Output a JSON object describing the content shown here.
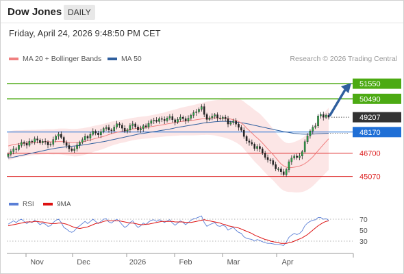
{
  "header": {
    "title": "Dow Jones",
    "period": "DAILY"
  },
  "timestamp": "Friday, April 24, 2026 9:48:50 PM CET",
  "legend": {
    "ma20_label": "MA 20 + Bollinger Bands",
    "ma20_color": "#f08080",
    "ma50_label": "MA 50",
    "ma50_color": "#2f5f9e"
  },
  "credit": "Research © 2026 Trading Central",
  "rsi_legend": {
    "rsi_label": "RSI",
    "rsi_color": "#5a7fd6",
    "ma9_label": "9MA",
    "ma9_color": "#dd1111"
  },
  "chart_data": {
    "type": "candlestick",
    "title": "Dow Jones",
    "y_range": [
      44000,
      52800
    ],
    "x_months": [
      "Nov",
      "Dec",
      "2026",
      "Feb",
      "Mar",
      "Apr"
    ],
    "last_price": {
      "value": 49207,
      "label": "49207"
    },
    "levels": [
      {
        "label": "51550",
        "value": 51550,
        "kind": "resistance-target",
        "color": "#4caa13"
      },
      {
        "label": "50490",
        "value": 50490,
        "kind": "resistance",
        "color": "#4caa13"
      },
      {
        "label": "48170",
        "value": 48170,
        "kind": "pivot",
        "color": "#1f6fd6"
      },
      {
        "label": "46700",
        "value": 46700,
        "kind": "support",
        "color": "#dd2222"
      },
      {
        "label": "45070",
        "value": 45070,
        "kind": "support",
        "color": "#dd2222"
      }
    ],
    "arrow": {
      "direction": "up",
      "from_value": 49207,
      "to_value": 51550,
      "color": "#2f5f9e"
    },
    "closes": [
      46620,
      46810,
      47000,
      46950,
      47240,
      47460,
      47380,
      47250,
      47530,
      47480,
      47700,
      47610,
      47420,
      47530,
      47480,
      47270,
      47310,
      47650,
      47880,
      48020,
      47800,
      47430,
      47230,
      47000,
      46880,
      47000,
      47260,
      47450,
      47640,
      47860,
      47750,
      48010,
      48230,
      48100,
      47980,
      48200,
      48420,
      48490,
      48320,
      48270,
      48520,
      48750,
      48650,
      48440,
      48230,
      48320,
      48620,
      48740,
      48530,
      48310,
      48410,
      48610,
      48530,
      48780,
      48960,
      49010,
      48910,
      49110,
      49060,
      48960,
      49150,
      49260,
      49030,
      48860,
      49050,
      49210,
      49110,
      48950,
      49140,
      49340,
      49530,
      49590,
      49760,
      49950,
      49400,
      49050,
      49160,
      49280,
      49380,
      49160,
      49110,
      49210,
      49100,
      48730,
      48840,
      48950,
      48720,
      48500,
      48300,
      47860,
      47550,
      47450,
      47330,
      47020,
      47170,
      47000,
      46700,
      46400,
      46230,
      46180,
      45900,
      45600,
      45600,
      45400,
      45200,
      45550,
      46100,
      46350,
      46500,
      46390,
      46500,
      46800,
      47500,
      47900,
      48250,
      48500,
      48600,
      49300,
      49400,
      49200,
      49350,
      49207
    ],
    "ma20": [
      47200,
      47250,
      47300,
      47330,
      47350,
      47370,
      47390,
      47410,
      47420,
      47440,
      47450,
      47460,
      47470,
      47480,
      47490,
      47500,
      47490,
      47480,
      47500,
      47510,
      47510,
      47500,
      47480,
      47460,
      47440,
      47430,
      47440,
      47460,
      47490,
      47530,
      47570,
      47620,
      47680,
      47730,
      47770,
      47820,
      47870,
      47930,
      48000,
      48060,
      48110,
      48150,
      48190,
      48220,
      48260,
      48300,
      48340,
      48380,
      48410,
      48440,
      48460,
      48480,
      48500,
      48520,
      48550,
      48580,
      48610,
      48640,
      48670,
      48700,
      48740,
      48770,
      48800,
      48830,
      48860,
      48900,
      48920,
      48940,
      48960,
      48980,
      49000,
      49030,
      49060,
      49090,
      49110,
      49140,
      49150,
      49160,
      49160,
      49150,
      49140,
      49140,
      49130,
      49110,
      49080,
      49030,
      48980,
      48900,
      48800,
      48650,
      48450,
      48280,
      48110,
      47920,
      47760,
      47600,
      47400,
      47200,
      47000,
      46800,
      46600,
      46380,
      46150,
      45950,
      45810,
      45720,
      45690,
      45700,
      45720,
      45750,
      45800,
      45870,
      45970,
      46100,
      46260,
      46440,
      46650,
      46870,
      47080,
      47300,
      47500,
      47700
    ],
    "ma50": [
      46350,
      46380,
      46420,
      46460,
      46500,
      46540,
      46580,
      46620,
      46660,
      46700,
      46740,
      46780,
      46820,
      46860,
      46900,
      46940,
      46980,
      47010,
      47040,
      47070,
      47100,
      47120,
      47140,
      47160,
      47180,
      47200,
      47220,
      47240,
      47260,
      47290,
      47320,
      47350,
      47380,
      47410,
      47440,
      47470,
      47500,
      47540,
      47580,
      47620,
      47660,
      47700,
      47740,
      47780,
      47820,
      47860,
      47900,
      47940,
      47980,
      48020,
      48050,
      48080,
      48110,
      48140,
      48170,
      48200,
      48230,
      48260,
      48290,
      48320,
      48350,
      48380,
      48420,
      48460,
      48500,
      48530,
      48560,
      48590,
      48620,
      48650,
      48680,
      48710,
      48740,
      48780,
      48810,
      48830,
      48850,
      48870,
      48890,
      48900,
      48910,
      48920,
      48920,
      48910,
      48900,
      48880,
      48860,
      48840,
      48820,
      48790,
      48760,
      48720,
      48680,
      48640,
      48600,
      48560,
      48520,
      48480,
      48440,
      48400,
      48360,
      48320,
      48280,
      48240,
      48200,
      48170,
      48140,
      48110,
      48080,
      48060,
      48040,
      48030,
      48020,
      48020,
      48020,
      48030,
      48040,
      48050,
      48060,
      48070,
      48080,
      48090
    ],
    "bb_width": [
      1000,
      1000,
      980,
      960,
      940,
      930,
      920,
      910,
      900,
      890,
      880,
      880,
      870,
      870,
      870,
      870,
      880,
      880,
      890,
      900,
      910,
      920,
      930,
      940,
      950,
      960,
      960,
      960,
      950,
      940,
      930,
      920,
      910,
      900,
      890,
      880,
      870,
      860,
      850,
      840,
      830,
      820,
      810,
      800,
      800,
      790,
      790,
      780,
      780,
      780,
      780,
      780,
      780,
      790,
      790,
      800,
      810,
      820,
      830,
      840,
      860,
      880,
      900,
      920,
      940,
      960,
      980,
      1000,
      1020,
      1040,
      1060,
      1080,
      1100,
      1120,
      1140,
      1160,
      1180,
      1200,
      1230,
      1260,
      1290,
      1330,
      1370,
      1410,
      1450,
      1490,
      1530,
      1570,
      1610,
      1650,
      1690,
      1730,
      1770,
      1800,
      1830,
      1850,
      1860,
      1860,
      1850,
      1830,
      1800,
      1780,
      1760,
      1740,
      1720,
      1700,
      1700,
      1720,
      1760,
      1800,
      1840,
      1880,
      1920,
      1960,
      2000,
      2040,
      2070,
      2100,
      2130,
      2150,
      2160,
      2170
    ],
    "rsi": {
      "y_ticks": [
        30,
        50,
        70
      ],
      "levels": [
        70,
        30
      ],
      "rsi": [
        61,
        64,
        67,
        64,
        68,
        70,
        66,
        62,
        66,
        64,
        68,
        65,
        60,
        63,
        61,
        57,
        58,
        64,
        68,
        70,
        64,
        55,
        52,
        48,
        46,
        49,
        55,
        58,
        62,
        66,
        62,
        66,
        70,
        66,
        62,
        66,
        70,
        71,
        65,
        63,
        67,
        70,
        66,
        60,
        55,
        58,
        64,
        67,
        60,
        55,
        58,
        63,
        60,
        65,
        68,
        69,
        66,
        69,
        67,
        64,
        67,
        69,
        63,
        59,
        63,
        67,
        64,
        60,
        64,
        68,
        71,
        72,
        74,
        76,
        64,
        57,
        60,
        62,
        64,
        58,
        57,
        59,
        57,
        50,
        53,
        55,
        50,
        46,
        44,
        38,
        35,
        34,
        33,
        30,
        33,
        31,
        29,
        27,
        26,
        26,
        25,
        24,
        24,
        23,
        22,
        28,
        37,
        41,
        44,
        42,
        44,
        49,
        58,
        63,
        66,
        68,
        69,
        73,
        73,
        70,
        71,
        68
      ],
      "ma9": [
        58,
        59,
        60,
        61,
        62,
        63,
        64,
        65,
        65,
        65,
        66,
        66,
        65,
        65,
        64,
        63,
        62,
        62,
        62,
        63,
        63,
        62,
        61,
        59,
        57,
        55,
        54,
        53,
        54,
        55,
        56,
        58,
        60,
        62,
        63,
        64,
        66,
        67,
        67,
        67,
        67,
        67,
        67,
        66,
        65,
        64,
        63,
        63,
        62,
        61,
        60,
        60,
        61,
        61,
        62,
        63,
        64,
        65,
        66,
        66,
        66,
        66,
        66,
        65,
        65,
        65,
        65,
        64,
        64,
        64,
        65,
        66,
        67,
        68,
        69,
        68,
        67,
        66,
        65,
        64,
        63,
        61,
        60,
        58,
        57,
        56,
        55,
        54,
        52,
        50,
        48,
        46,
        44,
        41,
        39,
        37,
        35,
        33,
        32,
        30,
        29,
        28,
        27,
        26,
        26,
        26,
        27,
        28,
        30,
        32,
        34,
        36,
        39,
        42,
        46,
        50,
        54,
        58,
        61,
        64,
        66,
        67
      ]
    }
  }
}
